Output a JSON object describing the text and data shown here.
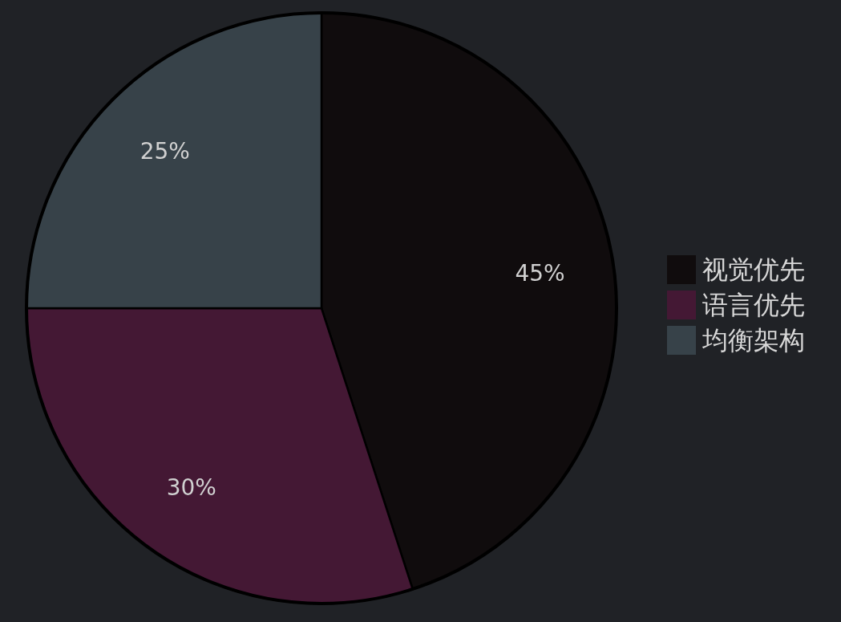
{
  "chart_data": {
    "type": "pie",
    "categories": [
      "视觉优先",
      "语言优先",
      "均衡架构"
    ],
    "values": [
      45,
      30,
      25
    ],
    "colors": [
      "#100c0d",
      "#441834",
      "#374249"
    ],
    "value_labels": [
      "45%",
      "30%",
      "25%"
    ],
    "legend": "right"
  }
}
